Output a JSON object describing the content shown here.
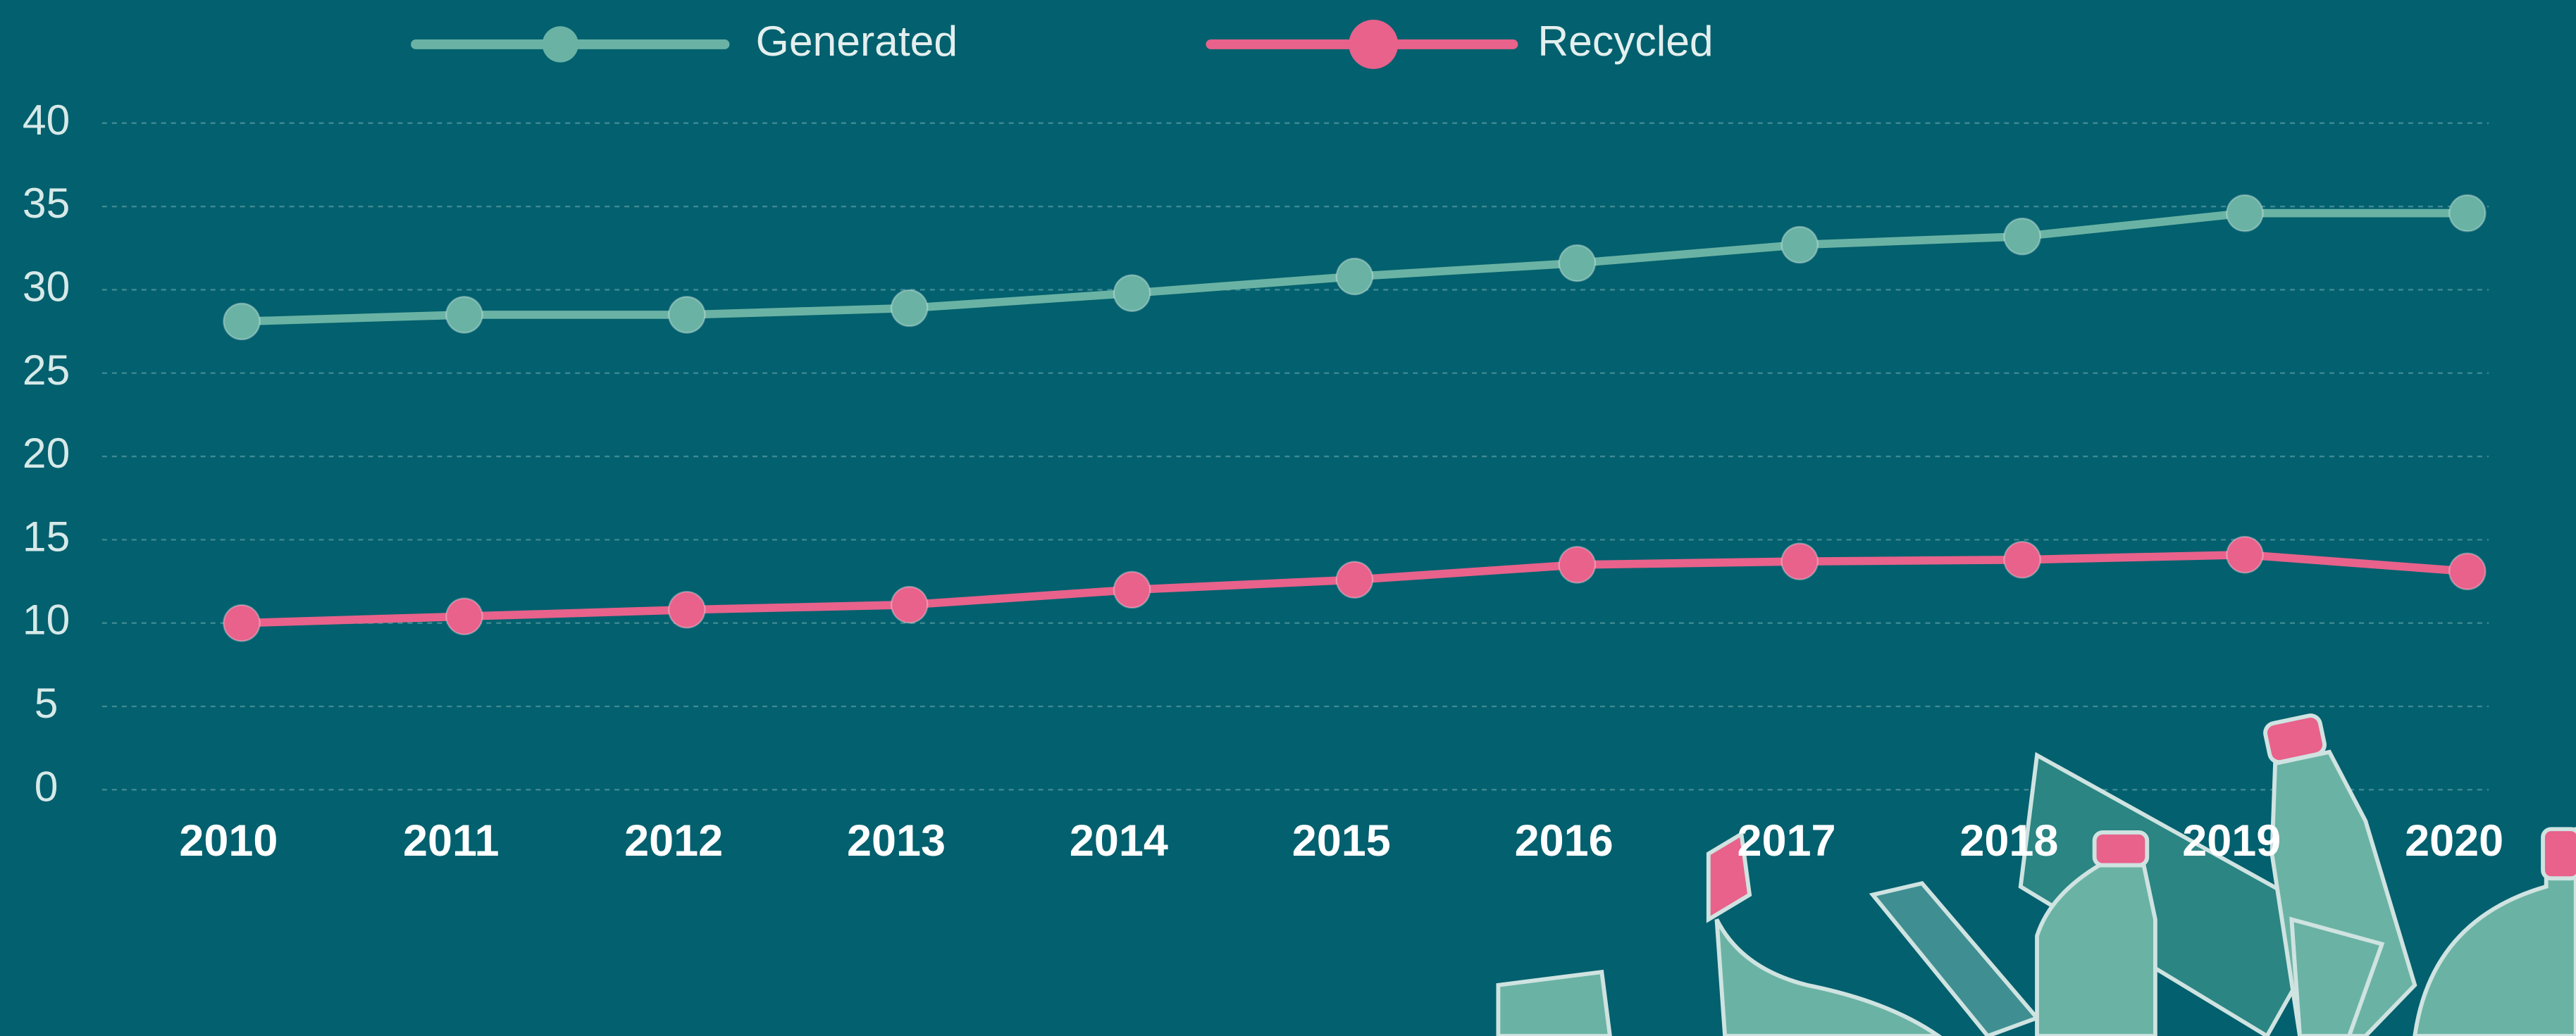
{
  "chart_data": {
    "type": "line",
    "categories": [
      "2010",
      "2011",
      "2012",
      "2013",
      "2014",
      "2015",
      "2016",
      "2017",
      "2018",
      "2019",
      "2020"
    ],
    "series": [
      {
        "name": "Generated",
        "color": "#6ab3a4",
        "values": [
          28.1,
          28.5,
          28.5,
          28.9,
          29.8,
          30.8,
          31.6,
          32.7,
          33.2,
          34.6,
          34.6
        ]
      },
      {
        "name": "Recycled",
        "color": "#e8628b",
        "values": [
          10.0,
          10.4,
          10.8,
          11.1,
          12.0,
          12.6,
          13.5,
          13.7,
          13.8,
          14.1,
          13.1
        ]
      }
    ],
    "ylim": [
      0,
      40
    ],
    "yticks": [
      0,
      5,
      10,
      15,
      20,
      25,
      30,
      35,
      40
    ],
    "grid": true,
    "legend": "top"
  }
}
